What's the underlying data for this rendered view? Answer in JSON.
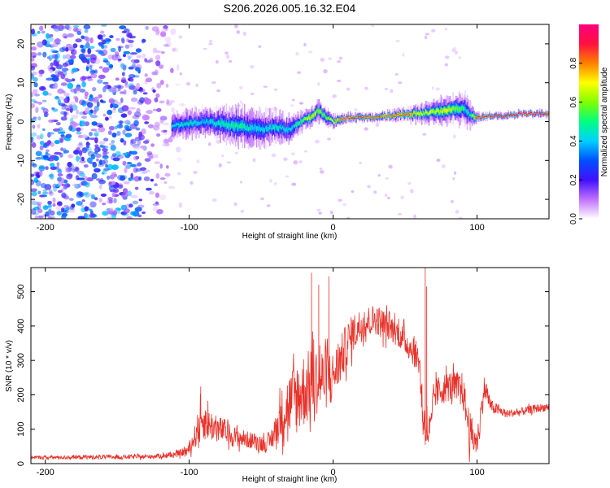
{
  "title": "S206.2026.005.16.32.E04",
  "colors": {
    "frame": "#000000",
    "snr_line": "#e8322a",
    "background": "#ffffff"
  },
  "chart_data": [
    {
      "type": "heatmap",
      "name": "spectrogram",
      "xlabel": "Height of straight line (km)",
      "ylabel": "Frequency (Hz)",
      "xlim": [
        -210,
        150
      ],
      "ylim": [
        -25,
        25
      ],
      "xticks": [
        -200,
        -100,
        0,
        100
      ],
      "yticks": [
        -20,
        -10,
        0,
        10,
        20
      ],
      "colorbar": {
        "label": "Normalized spectral amplitude",
        "range": [
          0,
          1
        ],
        "ticks": [
          0.0,
          0.2,
          0.4,
          0.6,
          0.8
        ],
        "tick_labels": [
          "0.0",
          "0.2",
          "0.4",
          "0.6",
          "0.8"
        ],
        "colormap": [
          "#ffffff",
          "#c070ff",
          "#4010ff",
          "#0050ff",
          "#00d0ff",
          "#00ff80",
          "#80ff00",
          "#ffff00",
          "#ff8000",
          "#ff1040",
          "#ff0080"
        ]
      },
      "noise_region_x": [
        -210,
        -110
      ],
      "signal_track": {
        "x": [
          -110,
          -100,
          -90,
          -80,
          -70,
          -60,
          -50,
          -40,
          -30,
          -20,
          -15,
          -10,
          -5,
          0,
          10,
          20,
          30,
          40,
          50,
          60,
          70,
          80,
          90,
          95,
          100,
          110,
          120,
          130,
          140,
          150
        ],
        "freq": [
          -1,
          -0.5,
          0,
          -0.5,
          -1,
          -1.5,
          -2,
          -1.5,
          -2,
          0.5,
          1,
          3,
          1,
          0,
          1,
          1,
          1,
          1.5,
          2,
          2,
          2.5,
          3,
          3.5,
          2,
          1,
          1.5,
          1.5,
          2,
          2,
          2.2
        ],
        "amplitude": [
          0.4,
          0.45,
          0.4,
          0.45,
          0.5,
          0.45,
          0.4,
          0.45,
          0.4,
          0.6,
          0.75,
          0.6,
          0.55,
          0.7,
          0.9,
          0.85,
          0.8,
          0.8,
          0.85,
          0.7,
          0.65,
          0.7,
          0.5,
          0.45,
          0.9,
          0.85,
          0.9,
          0.95,
          0.9,
          0.85
        ],
        "spread_hz": [
          3,
          3,
          3,
          3.5,
          4,
          4.5,
          4,
          3.5,
          3,
          2,
          2,
          2.5,
          2,
          1.5,
          1,
          1,
          1,
          1.2,
          1.5,
          2,
          2.5,
          3,
          3.5,
          3,
          1,
          0.8,
          0.8,
          0.8,
          0.8,
          0.8
        ]
      }
    },
    {
      "type": "line",
      "name": "snr",
      "xlabel": "Height of straight line (km)",
      "ylabel": "SNR (10 * v/v)",
      "xlim": [
        -210,
        150
      ],
      "ylim": [
        0,
        570
      ],
      "xticks": [
        -200,
        -100,
        0,
        100
      ],
      "yticks": [
        0,
        100,
        200,
        300,
        400,
        500
      ],
      "series": [
        {
          "name": "SNR",
          "x": [
            -210,
            -190,
            -170,
            -150,
            -130,
            -110,
            -100,
            -95,
            -92,
            -85,
            -80,
            -75,
            -70,
            -60,
            -50,
            -45,
            -40,
            -35,
            -30,
            -25,
            -20,
            -15,
            -12,
            -8,
            -4,
            0,
            5,
            10,
            15,
            20,
            25,
            30,
            35,
            40,
            45,
            50,
            55,
            60,
            62,
            65,
            68,
            70,
            75,
            80,
            85,
            90,
            95,
            100,
            105,
            110,
            120,
            130,
            140,
            150
          ],
          "values": [
            18,
            18,
            19,
            19,
            20,
            25,
            40,
            90,
            130,
            110,
            100,
            95,
            80,
            70,
            60,
            55,
            95,
            150,
            175,
            195,
            215,
            230,
            240,
            245,
            250,
            255,
            300,
            350,
            385,
            405,
            415,
            420,
            405,
            395,
            380,
            355,
            330,
            300,
            150,
            90,
            100,
            200,
            215,
            225,
            225,
            215,
            90,
            60,
            220,
            165,
            145,
            150,
            160,
            165
          ],
          "amplitude": [
            5,
            5,
            6,
            6,
            6,
            8,
            15,
            40,
            60,
            45,
            40,
            35,
            30,
            25,
            25,
            25,
            45,
            80,
            95,
            110,
            110,
            105,
            100,
            95,
            90,
            70,
            70,
            65,
            55,
            50,
            45,
            45,
            45,
            40,
            40,
            40,
            40,
            45,
            60,
            60,
            50,
            45,
            45,
            45,
            45,
            50,
            60,
            40,
            35,
            20,
            12,
            12,
            12,
            12
          ]
        }
      ],
      "spikes": [
        {
          "x": -92,
          "value": 185
        },
        {
          "x": -15,
          "value": 555
        },
        {
          "x": -10,
          "value": 520
        },
        {
          "x": -3,
          "value": 545
        },
        {
          "x": 64,
          "value": 570
        },
        {
          "x": 65,
          "value": 515
        }
      ]
    }
  ]
}
